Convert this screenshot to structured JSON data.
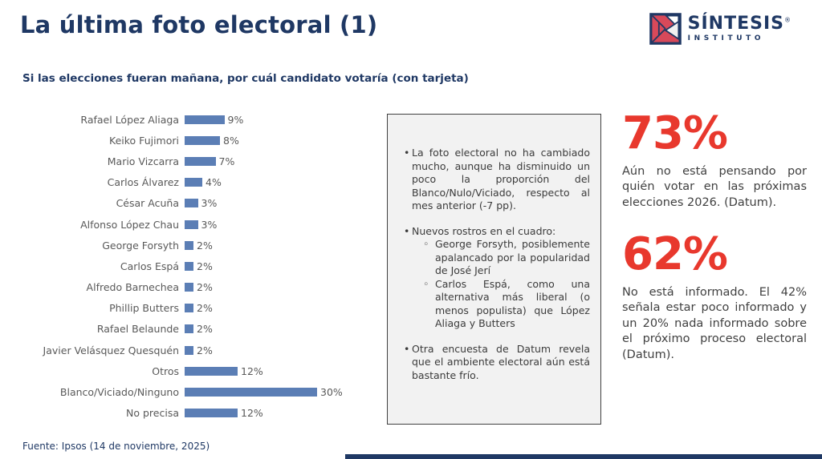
{
  "colors": {
    "navy": "#1f3864",
    "bar_blue": "#5b7eb5",
    "accent_red": "#e8382d",
    "text_gray": "#595959",
    "notes_bg": "#f2f2f2",
    "notes_border": "#404040"
  },
  "header": {
    "title": "La última foto electoral (1)",
    "logo": {
      "brand": "SÍNTESIS",
      "registered": "®",
      "sub": "INSTITUTO"
    }
  },
  "subtitle": "Si las elecciones fueran mañana, por cuál candidato votaría (con tarjeta)",
  "chart_data": {
    "type": "bar",
    "orientation": "horizontal",
    "title": "Si las elecciones fueran mañana, por cuál candidato votaría (con tarjeta)",
    "categories": [
      "Rafael López Aliaga",
      "Keiko Fujimori",
      "Mario Vizcarra",
      "Carlos Álvarez",
      "César Acuña",
      "Alfonso López Chau",
      "George Forsyth",
      "Carlos Espá",
      "Alfredo Barnechea",
      "Phillip Butters",
      "Rafael Belaunde",
      "Javier Velásquez Quesquén",
      "Otros",
      "Blanco/Viciado/Ninguno",
      "No precisa"
    ],
    "values": [
      9,
      8,
      7,
      4,
      3,
      3,
      2,
      2,
      2,
      2,
      2,
      2,
      12,
      30,
      12
    ],
    "labels": [
      "9%",
      "8%",
      "7%",
      "4%",
      "3%",
      "3%",
      "2%",
      "2%",
      "2%",
      "2%",
      "2%",
      "2%",
      "12%",
      "30%",
      "12%"
    ],
    "xlim": [
      0,
      30
    ],
    "bar_color": "#5b7eb5",
    "grid": false,
    "legend": false,
    "data_labels": true
  },
  "notes": {
    "bullet_1": "La foto electoral no ha cambiado mucho, aunque ha disminuido un poco la proporción del Blanco/Nulo/Viciado, respecto al mes anterior (-7 pp).",
    "bullet_2": "Nuevos rostros en el cuadro:",
    "bullet_2_sub_1": "George Forsyth, posiblemente apalancado por la popularidad de José Jerí",
    "bullet_2_sub_2": "Carlos Espá, como una alternativa más liberal (o menos populista) que López Aliaga y Butters",
    "bullet_3": "Otra encuesta de Datum revela que el ambiente electoral aún está bastante frío."
  },
  "stats": [
    {
      "value": "73%",
      "description": "Aún no está pensando por quién votar en las próximas elecciones 2026. (Datum)."
    },
    {
      "value": "62%",
      "description": "No está informado. El 42% señala estar poco informado y un 20% nada informado sobre el próximo proceso electoral (Datum)."
    }
  ],
  "footer": {
    "source": "Fuente: Ipsos (14 de noviembre, 2025)"
  }
}
